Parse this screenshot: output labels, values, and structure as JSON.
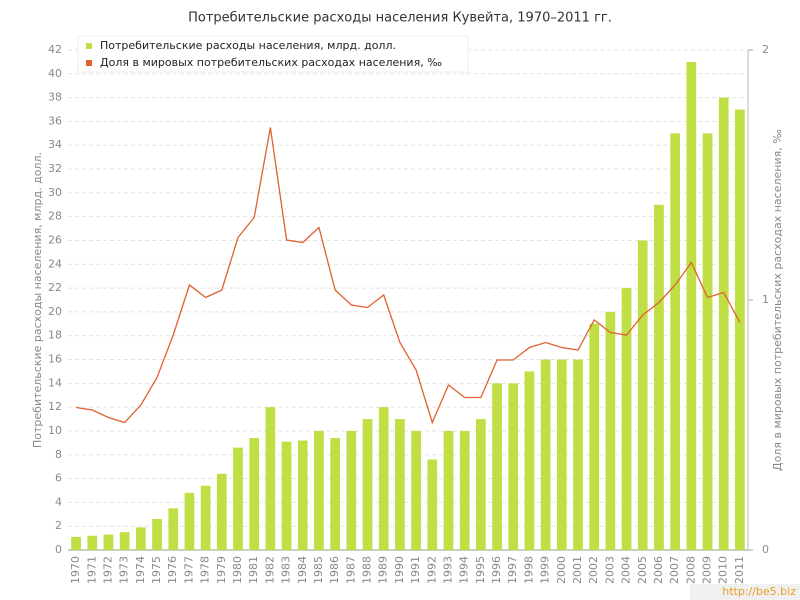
{
  "chart_data": {
    "type": "bar+line",
    "title": "Потребительские расходы населения Кувейта, 1970–2011 гг.",
    "y_label": "Потребительские расходы населения, млрд. долл.",
    "y2_label": "Доля в мировых потребительских расходах населения, ‰",
    "watermark": "http://be5.biz",
    "categories": [
      "1970",
      "1971",
      "1972",
      "1973",
      "1974",
      "1975",
      "1976",
      "1977",
      "1978",
      "1979",
      "1980",
      "1981",
      "1982",
      "1983",
      "1984",
      "1985",
      "1986",
      "1987",
      "1988",
      "1989",
      "1990",
      "1991",
      "1992",
      "1993",
      "1994",
      "1995",
      "1996",
      "1997",
      "1998",
      "1999",
      "2000",
      "2001",
      "2002",
      "2003",
      "2004",
      "2005",
      "2006",
      "2007",
      "2008",
      "2009",
      "2010",
      "2011"
    ],
    "series": [
      {
        "name": "Потребительские расходы населения, млрд. долл.",
        "type": "bar",
        "color": "#bfdf45",
        "values": [
          1.1,
          1.2,
          1.3,
          1.5,
          1.9,
          2.6,
          3.5,
          4.8,
          5.4,
          6.4,
          8.6,
          9.4,
          12,
          9.1,
          9.2,
          10,
          9.4,
          10,
          11,
          12,
          11,
          10,
          7.6,
          10,
          10,
          11,
          14,
          14,
          15,
          16,
          16,
          16,
          19,
          20,
          22,
          26,
          29,
          35,
          41,
          35,
          38,
          37
        ]
      },
      {
        "name": "Доля в мировых потребительских расходах населения, ‰",
        "type": "line",
        "axis": "y2",
        "color": "#e0602f",
        "values": [
          0.57,
          0.56,
          0.53,
          0.51,
          0.58,
          0.69,
          0.86,
          1.06,
          1.01,
          1.04,
          1.25,
          1.33,
          1.69,
          1.24,
          1.23,
          1.29,
          1.04,
          0.98,
          0.97,
          1.02,
          0.83,
          0.72,
          0.51,
          0.66,
          0.61,
          0.61,
          0.76,
          0.76,
          0.81,
          0.83,
          0.81,
          0.8,
          0.92,
          0.87,
          0.86,
          0.94,
          0.99,
          1.06,
          1.15,
          1.01,
          1.03,
          0.91
        ]
      }
    ],
    "ylim": [
      0,
      42
    ],
    "yticks": [
      0,
      2,
      4,
      6,
      8,
      10,
      12,
      14,
      16,
      18,
      20,
      22,
      24,
      26,
      28,
      30,
      32,
      34,
      36,
      38,
      40,
      42
    ],
    "y2lim": [
      0,
      2
    ],
    "y2ticks": [
      0,
      1,
      2
    ],
    "grid": true,
    "legend": "top-left"
  }
}
